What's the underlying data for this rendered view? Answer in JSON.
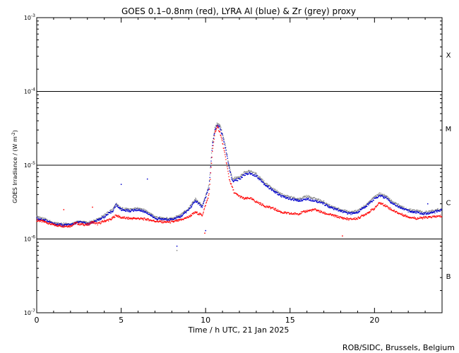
{
  "chart_data": {
    "type": "scatter",
    "title": "GOES 0.1–0.8nm (red), LYRA Al (blue) & Zr (grey) proxy",
    "xlabel": "Time / h UTC, 21 Jan 2025",
    "ylabel_main": "GOES Irradiance / (W m",
    "ylabel_sup": "-2",
    "ylabel_end": ")",
    "credit": "ROB/SIDC, Brussels, Belgium",
    "xlim": [
      0,
      24
    ],
    "ylim_log10": [
      -7,
      -3
    ],
    "x_ticks": [
      0,
      5,
      10,
      15,
      20
    ],
    "y_ticks": [
      {
        "exp": -3,
        "label_base": "10",
        "label_exp": "-3"
      },
      {
        "exp": -4,
        "label_base": "10",
        "label_exp": "-4"
      },
      {
        "exp": -5,
        "label_base": "10",
        "label_exp": "-5"
      },
      {
        "exp": -6,
        "label_base": "10",
        "label_exp": "-6"
      },
      {
        "exp": -7,
        "label_base": "10",
        "label_exp": "-7"
      }
    ],
    "class_lines": [
      -4,
      -5,
      -6
    ],
    "classes": [
      {
        "label": "X",
        "exp": -3.5
      },
      {
        "label": "M",
        "exp": -4.5
      },
      {
        "label": "C",
        "exp": -5.5
      },
      {
        "label": "B",
        "exp": -6.5
      }
    ],
    "series": [
      {
        "name": "GOES 0.1–0.8nm",
        "color": "#ff0000",
        "points": [
          [
            0,
            1.8e-06
          ],
          [
            0.5,
            1.7e-06
          ],
          [
            1.0,
            1.55e-06
          ],
          [
            1.5,
            1.5e-06
          ],
          [
            2.0,
            1.5e-06
          ],
          [
            2.3,
            1.65e-06
          ],
          [
            2.5,
            1.6e-06
          ],
          [
            3.0,
            1.55e-06
          ],
          [
            3.3,
            1.7e-06
          ],
          [
            3.6,
            1.6e-06
          ],
          [
            4.0,
            1.75e-06
          ],
          [
            4.4,
            1.85e-06
          ],
          [
            4.7,
            2.1e-06
          ],
          [
            5.0,
            1.95e-06
          ],
          [
            5.5,
            1.9e-06
          ],
          [
            6.0,
            1.9e-06
          ],
          [
            6.5,
            1.85e-06
          ],
          [
            7.0,
            1.75e-06
          ],
          [
            7.5,
            1.7e-06
          ],
          [
            8.0,
            1.7e-06
          ],
          [
            8.5,
            1.8e-06
          ],
          [
            9.0,
            2e-06
          ],
          [
            9.4,
            2.3e-06
          ],
          [
            9.8,
            2.1e-06
          ],
          [
            10.2,
            4e-06
          ],
          [
            10.4,
            1.5e-05
          ],
          [
            10.55,
            2.8e-05
          ],
          [
            10.7,
            3.3e-05
          ],
          [
            10.85,
            2.8e-05
          ],
          [
            11.0,
            2e-05
          ],
          [
            11.2,
            1.2e-05
          ],
          [
            11.4,
            6.5e-06
          ],
          [
            11.7,
            4.2e-06
          ],
          [
            12.0,
            3.8e-06
          ],
          [
            12.3,
            3.5e-06
          ],
          [
            12.6,
            3.6e-06
          ],
          [
            13.0,
            3.2e-06
          ],
          [
            13.5,
            2.8e-06
          ],
          [
            14.0,
            2.6e-06
          ],
          [
            14.5,
            2.3e-06
          ],
          [
            15.0,
            2.2e-06
          ],
          [
            15.5,
            2.2e-06
          ],
          [
            16.0,
            2.4e-06
          ],
          [
            16.5,
            2.5e-06
          ],
          [
            17.0,
            2.25e-06
          ],
          [
            17.5,
            2.1e-06
          ],
          [
            18.0,
            1.95e-06
          ],
          [
            18.5,
            1.85e-06
          ],
          [
            19.0,
            1.9e-06
          ],
          [
            19.5,
            2.2e-06
          ],
          [
            20.0,
            2.6e-06
          ],
          [
            20.3,
            3.1e-06
          ],
          [
            20.7,
            2.8e-06
          ],
          [
            21.0,
            2.5e-06
          ],
          [
            21.5,
            2.2e-06
          ],
          [
            22.0,
            2e-06
          ],
          [
            22.5,
            1.9e-06
          ],
          [
            23.0,
            1.95e-06
          ],
          [
            23.5,
            2e-06
          ],
          [
            24.0,
            2.05e-06
          ]
        ]
      },
      {
        "name": "LYRA Al proxy",
        "color": "#0000cc",
        "points": [
          [
            0,
            1.9e-06
          ],
          [
            0.5,
            1.8e-06
          ],
          [
            1.0,
            1.6e-06
          ],
          [
            1.5,
            1.55e-06
          ],
          [
            2.0,
            1.55e-06
          ],
          [
            2.5,
            1.7e-06
          ],
          [
            3.0,
            1.6e-06
          ],
          [
            3.5,
            1.75e-06
          ],
          [
            4.0,
            2e-06
          ],
          [
            4.5,
            2.4e-06
          ],
          [
            4.7,
            2.9e-06
          ],
          [
            5.0,
            2.5e-06
          ],
          [
            5.5,
            2.4e-06
          ],
          [
            6.0,
            2.5e-06
          ],
          [
            6.5,
            2.3e-06
          ],
          [
            7.0,
            1.9e-06
          ],
          [
            7.5,
            1.85e-06
          ],
          [
            8.0,
            1.85e-06
          ],
          [
            8.5,
            2e-06
          ],
          [
            9.0,
            2.5e-06
          ],
          [
            9.4,
            3.3e-06
          ],
          [
            9.8,
            2.7e-06
          ],
          [
            10.2,
            5e-06
          ],
          [
            10.4,
            1.8e-05
          ],
          [
            10.55,
            3e-05
          ],
          [
            10.7,
            3.5e-05
          ],
          [
            10.85,
            3.2e-05
          ],
          [
            11.0,
            2.5e-05
          ],
          [
            11.2,
            1.6e-05
          ],
          [
            11.4,
            9e-06
          ],
          [
            11.6,
            6e-06
          ],
          [
            12.0,
            6.5e-06
          ],
          [
            12.3,
            7.5e-06
          ],
          [
            12.6,
            7.8e-06
          ],
          [
            13.0,
            7.2e-06
          ],
          [
            13.5,
            5.5e-06
          ],
          [
            14.0,
            4.5e-06
          ],
          [
            14.5,
            3.8e-06
          ],
          [
            15.0,
            3.5e-06
          ],
          [
            15.5,
            3.3e-06
          ],
          [
            16.0,
            3.5e-06
          ],
          [
            16.5,
            3.3e-06
          ],
          [
            17.0,
            3e-06
          ],
          [
            17.5,
            2.6e-06
          ],
          [
            18.0,
            2.4e-06
          ],
          [
            18.5,
            2.2e-06
          ],
          [
            19.0,
            2.3e-06
          ],
          [
            19.5,
            2.8e-06
          ],
          [
            20.0,
            3.5e-06
          ],
          [
            20.3,
            3.9e-06
          ],
          [
            20.7,
            3.6e-06
          ],
          [
            21.0,
            3.1e-06
          ],
          [
            21.5,
            2.7e-06
          ],
          [
            22.0,
            2.4e-06
          ],
          [
            22.5,
            2.3e-06
          ],
          [
            23.0,
            2.2e-06
          ],
          [
            23.5,
            2.3e-06
          ],
          [
            24.0,
            2.5e-06
          ]
        ]
      },
      {
        "name": "LYRA Zr proxy",
        "color": "#888888",
        "points": [
          [
            0,
            2e-06
          ],
          [
            0.5,
            1.85e-06
          ],
          [
            1.0,
            1.65e-06
          ],
          [
            1.5,
            1.6e-06
          ],
          [
            2.0,
            1.6e-06
          ],
          [
            2.5,
            1.75e-06
          ],
          [
            3.0,
            1.65e-06
          ],
          [
            3.5,
            1.8e-06
          ],
          [
            4.0,
            2.1e-06
          ],
          [
            4.5,
            2.5e-06
          ],
          [
            4.7,
            3e-06
          ],
          [
            5.0,
            2.6e-06
          ],
          [
            5.5,
            2.5e-06
          ],
          [
            6.0,
            2.6e-06
          ],
          [
            6.5,
            2.4e-06
          ],
          [
            7.0,
            2e-06
          ],
          [
            7.5,
            1.9e-06
          ],
          [
            8.0,
            1.9e-06
          ],
          [
            8.5,
            2.1e-06
          ],
          [
            9.0,
            2.6e-06
          ],
          [
            9.4,
            3.5e-06
          ],
          [
            9.8,
            2.8e-06
          ],
          [
            10.2,
            5.5e-06
          ],
          [
            10.4,
            2e-05
          ],
          [
            10.55,
            3.2e-05
          ],
          [
            10.7,
            3.7e-05
          ],
          [
            10.85,
            3.4e-05
          ],
          [
            11.0,
            2.7e-05
          ],
          [
            11.2,
            1.7e-05
          ],
          [
            11.4,
            9.5e-06
          ],
          [
            11.6,
            6.5e-06
          ],
          [
            12.0,
            7e-06
          ],
          [
            12.3,
            8e-06
          ],
          [
            12.6,
            8.3e-06
          ],
          [
            13.0,
            7.6e-06
          ],
          [
            13.5,
            5.8e-06
          ],
          [
            14.0,
            4.8e-06
          ],
          [
            14.5,
            4e-06
          ],
          [
            15.0,
            3.7e-06
          ],
          [
            15.5,
            3.5e-06
          ],
          [
            16.0,
            3.8e-06
          ],
          [
            16.5,
            3.5e-06
          ],
          [
            17.0,
            3.2e-06
          ],
          [
            17.5,
            2.7e-06
          ],
          [
            18.0,
            2.5e-06
          ],
          [
            18.5,
            2.3e-06
          ],
          [
            19.0,
            2.4e-06
          ],
          [
            19.5,
            2.9e-06
          ],
          [
            20.0,
            3.7e-06
          ],
          [
            20.3,
            4.1e-06
          ],
          [
            20.7,
            3.8e-06
          ],
          [
            21.0,
            3.3e-06
          ],
          [
            21.5,
            2.8e-06
          ],
          [
            22.0,
            2.5e-06
          ],
          [
            22.5,
            2.4e-06
          ],
          [
            23.0,
            2.3e-06
          ],
          [
            23.5,
            2.4e-06
          ],
          [
            24.0,
            2.6e-06
          ]
        ]
      }
    ],
    "outliers": [
      {
        "x": 6.55,
        "y": 6.5e-06,
        "color": "#0000cc"
      },
      {
        "x": 5.0,
        "y": 5.5e-06,
        "color": "#0000cc"
      },
      {
        "x": 8.3,
        "y": 8e-07,
        "color": "#0000cc"
      },
      {
        "x": 8.3,
        "y": 7e-07,
        "color": "#888888"
      },
      {
        "x": 9.95,
        "y": 1.2e-06,
        "color": "#ff0000"
      },
      {
        "x": 10.0,
        "y": 1.3e-06,
        "color": "#0000cc"
      },
      {
        "x": 18.1,
        "y": 1.1e-06,
        "color": "#ff0000"
      },
      {
        "x": 23.15,
        "y": 3e-06,
        "color": "#0000cc"
      },
      {
        "x": 1.6,
        "y": 2.5e-06,
        "color": "#ff0000"
      },
      {
        "x": 3.3,
        "y": 2.7e-06,
        "color": "#ff0000"
      }
    ]
  }
}
